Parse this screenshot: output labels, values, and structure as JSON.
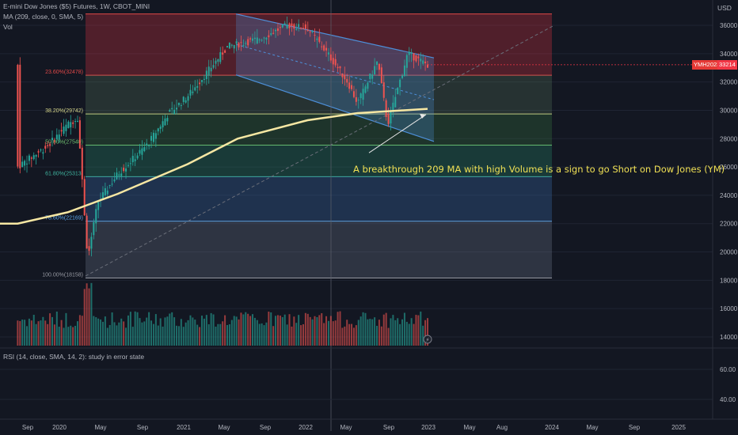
{
  "header": {
    "symbol_line": "E-mini Dow Jones ($5) Futures, 1W, CBOT_MINI",
    "ma_line": "MA (209, close, 0, SMA, 5)",
    "vol_line": "Vol",
    "rsi_line": "RSI (14, close, SMA, 14, 2): study in error state"
  },
  "price_axis": {
    "currency": "USD",
    "ticks": [
      "36000",
      "34000",
      "32000",
      "30000",
      "28000",
      "26000",
      "24000",
      "22000",
      "20000",
      "18000",
      "16000",
      "14000"
    ],
    "last_symbol": "YMH2023",
    "last_price": "33214"
  },
  "rsi_axis": {
    "ticks": [
      "60.00",
      "40.00"
    ]
  },
  "time_axis": {
    "ticks": [
      "Sep",
      "2020",
      "May",
      "Sep",
      "2021",
      "May",
      "Sep",
      "2022",
      "May",
      "Sep",
      "2023",
      "May",
      "Aug",
      "2024",
      "May",
      "Sep",
      "2025"
    ]
  },
  "fib_levels": [
    {
      "label": "23.60%(32478)",
      "price": 32478,
      "color": "#e04848"
    },
    {
      "label": "38.20%(29742)",
      "price": 29742,
      "color": "#d6d68a"
    },
    {
      "label": "50.00%(27540)",
      "price": 27540,
      "color": "#6fbf6f"
    },
    {
      "label": "61.80%(25313)",
      "price": 25313,
      "color": "#3fb39e"
    },
    {
      "label": "78.60%(22169)",
      "price": 22169,
      "color": "#5aa3e6"
    },
    {
      "label": "100.00%(18158)",
      "price": 18158,
      "color": "#9598a1"
    }
  ],
  "annotation": "A breakthrough 209 MA with high Volume is a sign to go Short on Dow Jones (YM)",
  "colors": {
    "up": "#26a69a",
    "down": "#ef5350",
    "ma": "#f6e7a3",
    "channel": "#4d8fd9",
    "background": "#131722"
  },
  "chart_data": {
    "type": "line",
    "title": "E-mini Dow Jones ($5) Futures, 1W, CBOT_MINI",
    "ylabel": "USD",
    "y_range": [
      13000,
      37000
    ],
    "series": [
      {
        "name": "YMH2023",
        "x": [
          "2019-08",
          "2019-11",
          "2020-01",
          "2020-02",
          "2020-03",
          "2020-04",
          "2020-06",
          "2020-09",
          "2020-11",
          "2021-01",
          "2021-05",
          "2021-08",
          "2021-11",
          "2022-01",
          "2022-03",
          "2022-05",
          "2022-06",
          "2022-08",
          "2022-09",
          "2022-10",
          "2022-11",
          "2023-01"
        ],
        "values": [
          26000,
          27500,
          29000,
          29500,
          19500,
          23500,
          25500,
          27600,
          29700,
          31000,
          34500,
          35000,
          36000,
          35800,
          34000,
          32000,
          30500,
          33500,
          29000,
          31500,
          34000,
          33214
        ]
      },
      {
        "name": "MA (209, close, 0, SMA, 5)",
        "x": [
          "2019-08",
          "2020-01",
          "2020-06",
          "2021-01",
          "2021-06",
          "2022-01",
          "2022-06",
          "2023-01"
        ],
        "values": [
          22000,
          22800,
          24100,
          26200,
          28000,
          29300,
          29800,
          30100
        ]
      }
    ]
  }
}
